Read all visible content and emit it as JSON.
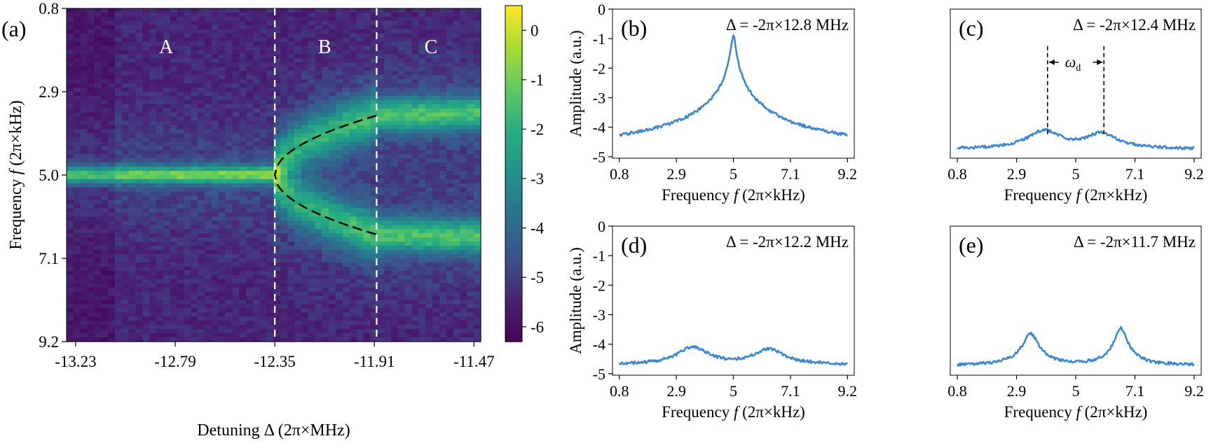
{
  "chart_data": [
    {
      "id": "a",
      "type": "heatmap",
      "panel_label": "(a)",
      "xlabel": "Detuning Δ (2π×MHz)",
      "ylabel_parts": [
        "Frequency ",
        "f",
        " (2π×kHz)"
      ],
      "xlim": [
        -13.27,
        -11.44
      ],
      "ylim": [
        0.8,
        9.2
      ],
      "xticks": [
        -13.23,
        -12.79,
        -12.35,
        -11.91,
        -11.47
      ],
      "xtick_labels": [
        "-13.23",
        "-12.79",
        "-12.35",
        "-11.91",
        "-11.47"
      ],
      "yticks": [
        0.8,
        2.9,
        5.0,
        7.1,
        9.2
      ],
      "ytick_labels": [
        "0.8",
        "2.9",
        "5.0",
        "7.1",
        "9.2"
      ],
      "grid_cols": 60,
      "grid_rows": 80,
      "dashed_lines_x": [
        -12.35,
        -11.9
      ],
      "region_labels": [
        {
          "text": "A",
          "x": -12.83,
          "y": 1.75
        },
        {
          "text": "B",
          "x": -12.13,
          "y": 1.75
        },
        {
          "text": "C",
          "x": -11.66,
          "y": 1.75
        }
      ],
      "bifurcation": {
        "x_start": -12.35,
        "x_end": -11.9,
        "f_center": 5.0,
        "half_width_end": 1.5
      },
      "colorbar": {
        "min": -6.3,
        "max": 0.5,
        "ticks": [
          0,
          -1,
          -2,
          -3,
          -4,
          -5,
          -6
        ],
        "tick_labels": [
          "0",
          "-1",
          "-2",
          "-3",
          "-4",
          "-5",
          "-6"
        ]
      }
    },
    {
      "id": "b",
      "type": "line",
      "panel_label": "(b)",
      "annotation": "Δ = -2π×12.8 MHz",
      "peaks": [
        {
          "f": 5.0,
          "amp": -0.9,
          "width": 0.07
        }
      ],
      "baseline": -4.7,
      "show_ylabel": true,
      "show_yticks": true
    },
    {
      "id": "c",
      "type": "line",
      "panel_label": "(c)",
      "annotation": "Δ = -2π×12.4 MHz",
      "peaks": [
        {
          "f": 3.9,
          "amp": -4.1,
          "width": 0.5
        },
        {
          "f": 5.9,
          "amp": -4.2,
          "width": 0.5
        }
      ],
      "baseline": -4.75,
      "show_ylabel": false,
      "show_yticks": false,
      "marker_lines_f": [
        4.0,
        6.0
      ],
      "marker_label": "ω",
      "marker_label_sub": "d"
    },
    {
      "id": "d",
      "type": "line",
      "panel_label": "(d)",
      "annotation": "Δ = -2π×12.2 MHz",
      "peaks": [
        {
          "f": 3.5,
          "amp": -4.1,
          "width": 0.5
        },
        {
          "f": 6.3,
          "amp": -4.15,
          "width": 0.5
        }
      ],
      "baseline": -4.7,
      "show_ylabel": true,
      "show_yticks": true
    },
    {
      "id": "e",
      "type": "line",
      "panel_label": "(e)",
      "annotation": "Δ = -2π×11.7 MHz",
      "peaks": [
        {
          "f": 3.4,
          "amp": -3.65,
          "width": 0.22
        },
        {
          "f": 6.6,
          "amp": -3.45,
          "width": 0.16
        }
      ],
      "baseline": -4.72,
      "show_ylabel": false,
      "show_yticks": false
    }
  ],
  "small_axes": {
    "xlabel_parts": [
      "Frequency ",
      "f",
      " (2π×kHz)"
    ],
    "ylabel": "Amplitude (a.u.)",
    "xlim": [
      0.55,
      9.45
    ],
    "ylim": [
      -5.05,
      0
    ],
    "xticks": [
      0.8,
      2.9,
      5,
      7.1,
      9.2
    ],
    "xtick_labels": [
      "0.8",
      "2.9",
      "5",
      "7.1",
      "9.2"
    ],
    "yticks": [
      0,
      -1,
      -2,
      -3,
      -4,
      -5
    ],
    "ytick_labels": [
      "0",
      "-1",
      "-2",
      "-3",
      "-4",
      "-5"
    ],
    "line_color": "#3a87d6"
  }
}
